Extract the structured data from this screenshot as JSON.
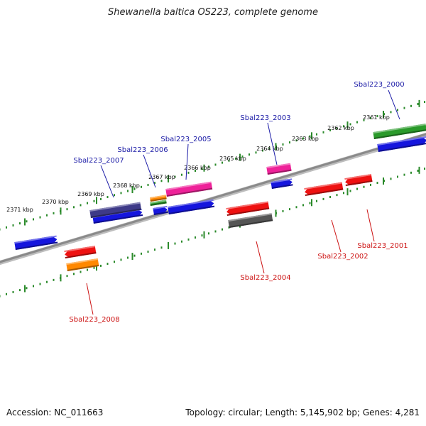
{
  "title": "Shewanella baltica OS223, complete genome",
  "footer": {
    "accession": "Accession: NC_011663",
    "summary": "Topology: circular; Length: 5,145,902 bp; Genes: 4,281"
  },
  "colors": {
    "backbone": "#8a8a8a",
    "ticks": "#2a8a2a",
    "label_top": "#1a1aa6",
    "label_bottom": "#cc1111",
    "blue": "#1515dd",
    "red": "#ee1111",
    "magenta": "#ee2299",
    "purple": "#3e3a88",
    "green": "#2a9a2a",
    "orange": "#ff8800",
    "gray": "#555555"
  },
  "kbp_ticks": [
    "2361 kbp",
    "2362 kbp",
    "2363 kbp",
    "2364 kbp",
    "2365 kbp",
    "2366 kbp",
    "2367 kbp",
    "2368 kbp",
    "2369 kbp",
    "2370 kbp",
    "2371 kbp"
  ],
  "gene_labels": [
    {
      "name": "Sbal223_2000",
      "strand": "top"
    },
    {
      "name": "Sbal223_2003",
      "strand": "top"
    },
    {
      "name": "Sbal223_2005",
      "strand": "top"
    },
    {
      "name": "Sbal223_2006",
      "strand": "top"
    },
    {
      "name": "Sbal223_2007",
      "strand": "top"
    },
    {
      "name": "Sbal223_2001",
      "strand": "bottom"
    },
    {
      "name": "Sbal223_2002",
      "strand": "bottom"
    },
    {
      "name": "Sbal223_2004",
      "strand": "bottom"
    },
    {
      "name": "Sbal223_2008",
      "strand": "bottom"
    }
  ]
}
